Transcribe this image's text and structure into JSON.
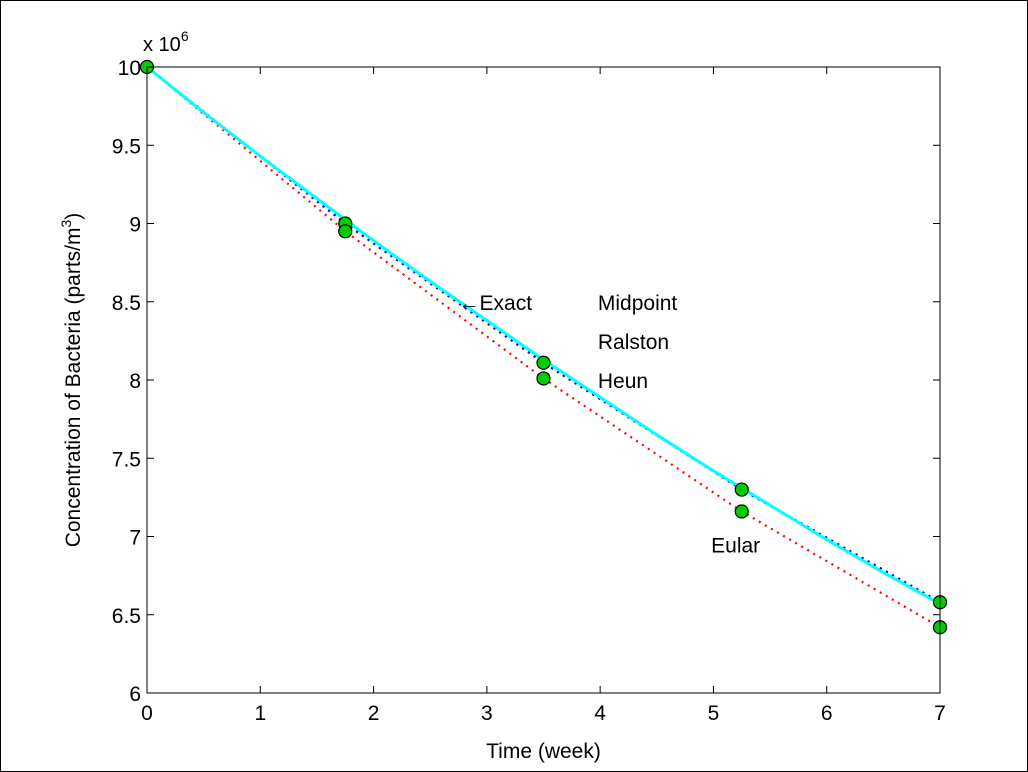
{
  "chart_data": {
    "type": "line",
    "xlabel": "Time (week)",
    "ylabel_main": "Concentration of Bacteria (parts/m",
    "ylabel_sup": "3",
    "ylabel_close": ")",
    "multiplier_base": "x 10",
    "multiplier_exp": "6",
    "xlim": [
      0,
      7
    ],
    "ylim": [
      6,
      10
    ],
    "x_ticks": [
      0,
      1,
      2,
      3,
      4,
      5,
      6,
      7
    ],
    "y_ticks": [
      6,
      6.5,
      7,
      7.5,
      8,
      8.5,
      9,
      9.5,
      10
    ],
    "x_tick_labels": [
      "0",
      "1",
      "2",
      "3",
      "4",
      "5",
      "6",
      "7"
    ],
    "y_tick_labels": [
      "6",
      "6.5",
      "7",
      "7.5",
      "8",
      "8.5",
      "9",
      "9.5",
      "10"
    ],
    "grid": false,
    "series": [
      {
        "name": "Exact",
        "style": "solid",
        "color": "#00ffff",
        "x": [
          0,
          0.5,
          1,
          1.5,
          2,
          2.5,
          3,
          3.5,
          4,
          4.5,
          5,
          5.5,
          6,
          6.5,
          7
        ],
        "values": [
          10,
          9.71,
          9.43,
          9.16,
          8.89,
          8.63,
          8.38,
          8.13,
          7.89,
          7.65,
          7.42,
          7.2,
          6.98,
          6.77,
          6.57
        ]
      },
      {
        "name": "Midpoint",
        "style": "dotted",
        "color": "#0000ff",
        "x": [
          0,
          1.75,
          3.5,
          5.25,
          7
        ],
        "values": [
          10,
          9.0,
          8.11,
          7.3,
          6.58
        ]
      },
      {
        "name": "Ralston",
        "style": "dotted",
        "color": "#0000ff",
        "x": [
          0,
          1.75,
          3.5,
          5.25,
          7
        ],
        "values": [
          10,
          9.0,
          8.11,
          7.3,
          6.58
        ]
      },
      {
        "name": "Heun",
        "style": "dotted",
        "color": "#0000ff",
        "x": [
          0,
          1.75,
          3.5,
          5.25,
          7
        ],
        "values": [
          10,
          9.0,
          8.11,
          7.3,
          6.58
        ]
      },
      {
        "name": "Eular",
        "style": "dotted",
        "color": "#ff0000",
        "x": [
          0,
          1.75,
          3.5,
          5.25,
          7
        ],
        "values": [
          10,
          8.95,
          8.01,
          7.16,
          6.42
        ]
      }
    ],
    "markers": {
      "color": "#00cc00",
      "points": [
        {
          "x": 0,
          "y": 10
        },
        {
          "x": 1.75,
          "y": 9.0
        },
        {
          "x": 1.75,
          "y": 8.95
        },
        {
          "x": 3.5,
          "y": 8.11
        },
        {
          "x": 3.5,
          "y": 8.01
        },
        {
          "x": 5.25,
          "y": 7.3
        },
        {
          "x": 5.25,
          "y": 7.16
        },
        {
          "x": 7,
          "y": 6.58
        },
        {
          "x": 7,
          "y": 6.42
        }
      ]
    },
    "annotations": [
      {
        "text": "←Exact",
        "x": 2.75,
        "y": 8.5
      },
      {
        "text": "Midpoint",
        "x": 3.98,
        "y": 8.5
      },
      {
        "text": "Ralston",
        "x": 3.98,
        "y": 8.25
      },
      {
        "text": "Heun",
        "x": 3.98,
        "y": 8.0
      },
      {
        "text": "Eular",
        "x": 4.98,
        "y": 6.95
      }
    ]
  }
}
